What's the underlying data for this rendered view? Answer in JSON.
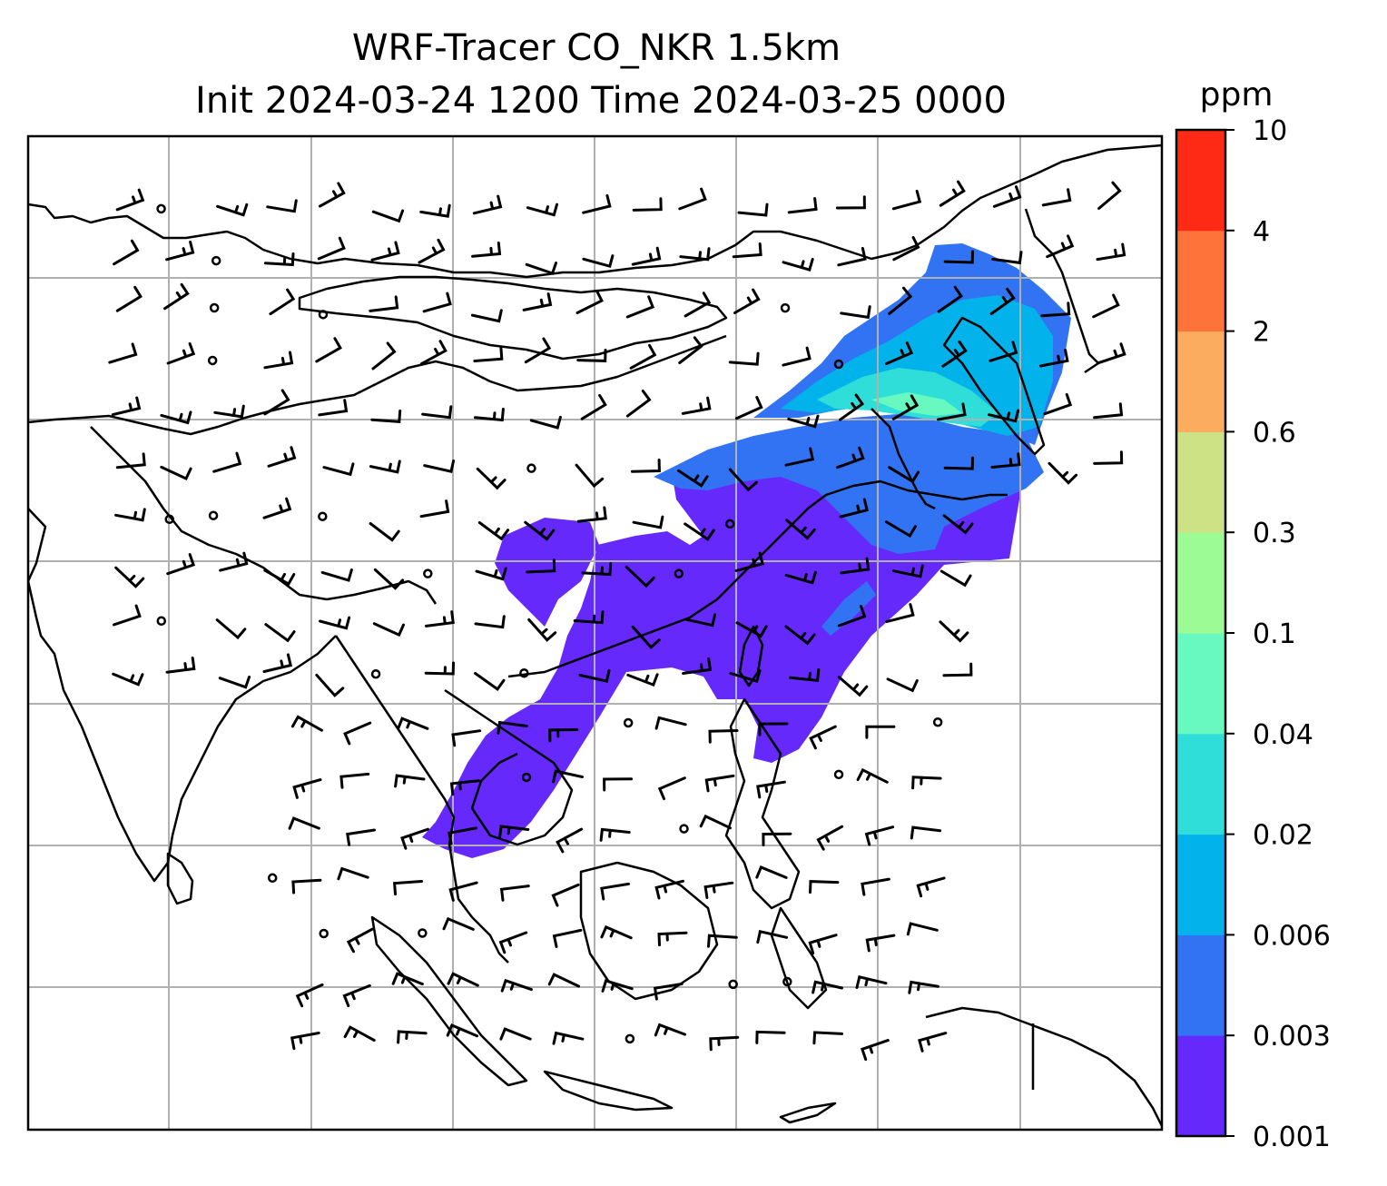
{
  "title": {
    "line1": "WRF-Tracer CO_NKR 1.5km",
    "line2": "Init 2024-03-24 1200 Time 2024-03-25 0000"
  },
  "colorbar": {
    "units": "ppm",
    "levels": [
      "0.001",
      "0.003",
      "0.006",
      "0.02",
      "0.04",
      "0.1",
      "0.3",
      "0.6",
      "2",
      "4",
      "10"
    ],
    "colors": [
      "#6529fb",
      "#3173f2",
      "#02b2ea",
      "#2fded8",
      "#68f9c0",
      "#9dfb95",
      "#cce285",
      "#fbac5e",
      "#fd7339",
      "#fe2a15"
    ]
  },
  "map": {
    "background": "#ffffff",
    "coastline_color": "#000000",
    "gridline_color": "#b0b0b0",
    "gridlines": true,
    "wind_barbs": true
  },
  "plume": {
    "main_color": "#6529fb",
    "mid_color": "#3173f2",
    "high_color": "#2fded8",
    "peak_color": "#68f9c0"
  }
}
